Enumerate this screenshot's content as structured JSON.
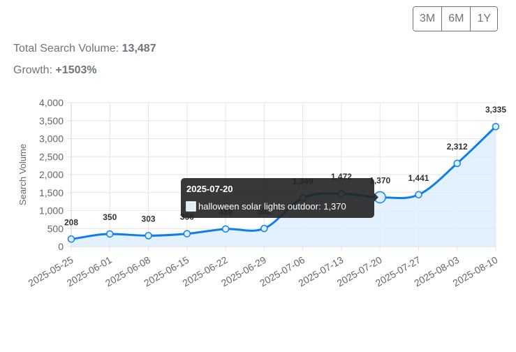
{
  "range_buttons": [
    "3M",
    "6M",
    "1Y"
  ],
  "stats": {
    "total_label": "Total Search Volume:",
    "total_value": "13,487",
    "growth_label": "Growth:",
    "growth_value": "+1503%"
  },
  "chart_data": {
    "type": "area",
    "categories": [
      "2025-05-25",
      "2025-06-01",
      "2025-06-08",
      "2025-06-15",
      "2025-06-22",
      "2025-06-29",
      "2025-07-06",
      "2025-07-13",
      "2025-07-20",
      "2025-07-27",
      "2025-08-03",
      "2025-08-10"
    ],
    "series": [
      {
        "name": "halloween solar lights outdoor",
        "values": [
          208,
          350,
          303,
          356,
          489,
          502,
          1349,
          1472,
          1370,
          1441,
          2312,
          3335
        ]
      }
    ],
    "data_labels": [
      "208",
      "350",
      "303",
      "356",
      "489",
      "502",
      "1,349",
      "1,472",
      "1,370",
      "1,441",
      "2,312",
      "3,335"
    ],
    "ylabel": "Search Volume",
    "ylim": [
      0,
      4000
    ],
    "yticks": [
      0,
      500,
      1000,
      1500,
      2000,
      2500,
      3000,
      3500,
      4000
    ],
    "ytick_labels": [
      "0",
      "500",
      "1,000",
      "1,500",
      "2,000",
      "2,500",
      "3,000",
      "3,500",
      "4,000"
    ],
    "grid": true,
    "colors": {
      "line": "#0d7ef2",
      "fill": "#ddeefd",
      "grid": "#e5e5e5",
      "tooltip_bg": "#222222"
    },
    "tooltip": {
      "index": 8,
      "title": "2025-07-20",
      "body": "halloween solar lights outdoor: 1,370"
    }
  }
}
